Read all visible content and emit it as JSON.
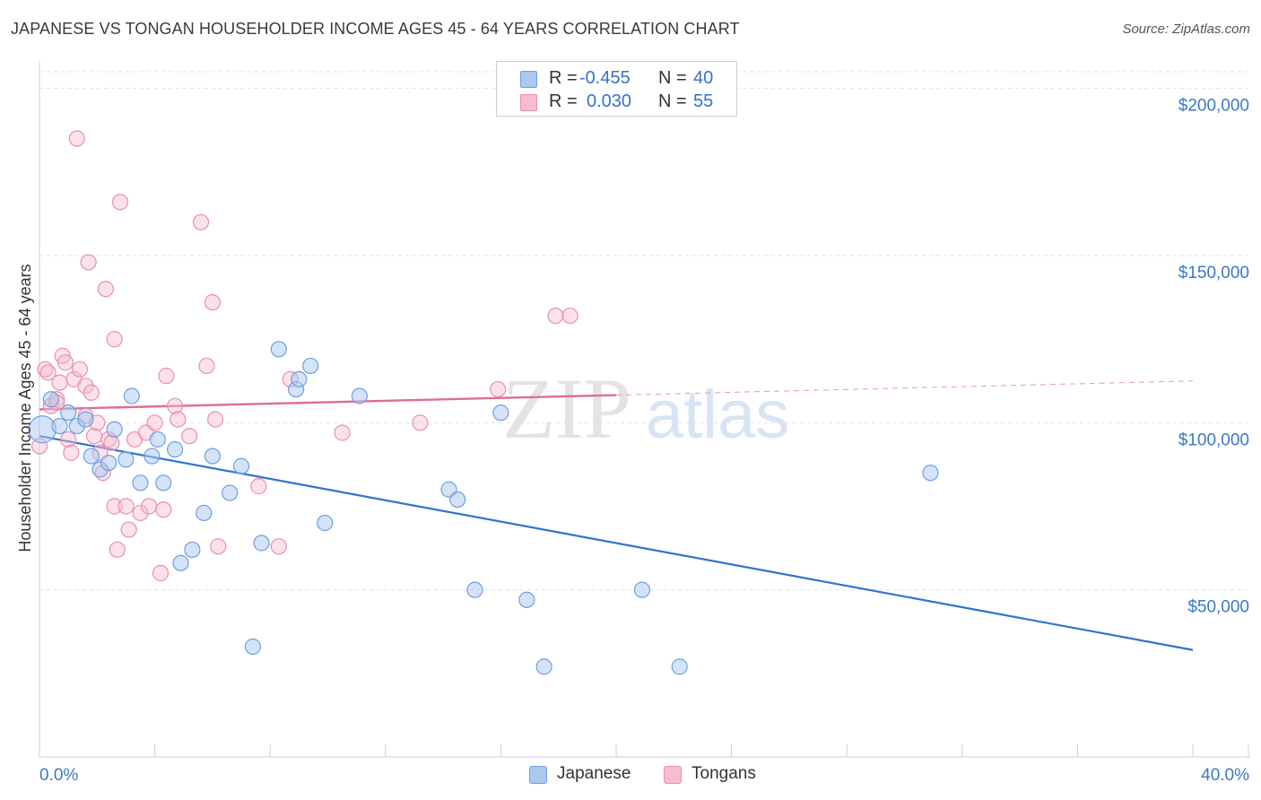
{
  "title": "JAPANESE VS TONGAN HOUSEHOLDER INCOME AGES 45 - 64 YEARS CORRELATION CHART",
  "source": "Source: ZipAtlas.com",
  "watermark": {
    "zip": "ZIP",
    "atlas": "atlas"
  },
  "legend": {
    "r_label": "R =",
    "n_label": "N =",
    "japanese": {
      "r": "-0.455",
      "n": "40"
    },
    "tongans": {
      "r": "0.030",
      "n": "55"
    }
  },
  "chart_data": {
    "type": "scatter",
    "title": "JAPANESE VS TONGAN HOUSEHOLDER INCOME AGES 45 - 64 YEARS CORRELATION CHART",
    "xlabel": "",
    "ylabel": "Householder Income Ages 45 - 64 years",
    "xlim": [
      0,
      40
    ],
    "ylim": [
      0,
      205000
    ],
    "x_tick_labels": [
      "0.0%",
      "40.0%"
    ],
    "y_ticks": [
      50000,
      100000,
      150000,
      200000
    ],
    "y_tick_labels": [
      "$50,000",
      "$100,000",
      "$150,000",
      "$200,000"
    ],
    "grid": true,
    "colors": {
      "japanese_fill": "#aac8f0",
      "japanese_stroke": "#6d9fe0",
      "japanese_line": "#2f74d0",
      "tongans_fill": "#f6bcd0",
      "tongans_stroke": "#ea8fb0",
      "tongans_line": "#e06c94",
      "tick_text": "#3a78c8"
    },
    "series": [
      {
        "name": "Japanese",
        "points": [
          [
            0.1,
            98000
          ],
          [
            0.4,
            107000
          ],
          [
            0.7,
            99000
          ],
          [
            1.0,
            103000
          ],
          [
            1.3,
            99000
          ],
          [
            1.6,
            101000
          ],
          [
            1.8,
            90000
          ],
          [
            2.1,
            86000
          ],
          [
            2.4,
            88000
          ],
          [
            2.6,
            98000
          ],
          [
            3.0,
            89000
          ],
          [
            3.2,
            108000
          ],
          [
            3.5,
            82000
          ],
          [
            3.9,
            90000
          ],
          [
            4.1,
            95000
          ],
          [
            4.3,
            82000
          ],
          [
            4.7,
            92000
          ],
          [
            4.9,
            58000
          ],
          [
            5.3,
            62000
          ],
          [
            5.7,
            73000
          ],
          [
            6.0,
            90000
          ],
          [
            6.6,
            79000
          ],
          [
            7.0,
            87000
          ],
          [
            7.4,
            33000
          ],
          [
            7.7,
            64000
          ],
          [
            8.3,
            122000
          ],
          [
            8.9,
            110000
          ],
          [
            9.0,
            113000
          ],
          [
            9.4,
            117000
          ],
          [
            9.9,
            70000
          ],
          [
            11.1,
            108000
          ],
          [
            14.2,
            80000
          ],
          [
            14.5,
            77000
          ],
          [
            15.1,
            50000
          ],
          [
            16.0,
            103000
          ],
          [
            16.9,
            47000
          ],
          [
            17.5,
            27000
          ],
          [
            20.9,
            50000
          ],
          [
            22.2,
            27000
          ],
          [
            30.9,
            85000
          ]
        ]
      },
      {
        "name": "Tongans",
        "points": [
          [
            0.0,
            93000
          ],
          [
            0.2,
            116000
          ],
          [
            0.3,
            115000
          ],
          [
            0.4,
            105000
          ],
          [
            0.6,
            107000
          ],
          [
            0.6,
            106000
          ],
          [
            0.7,
            112000
          ],
          [
            0.8,
            120000
          ],
          [
            0.9,
            118000
          ],
          [
            1.0,
            95000
          ],
          [
            1.1,
            91000
          ],
          [
            1.2,
            113000
          ],
          [
            1.3,
            185000
          ],
          [
            1.4,
            116000
          ],
          [
            1.6,
            102000
          ],
          [
            1.6,
            111000
          ],
          [
            1.7,
            148000
          ],
          [
            1.8,
            109000
          ],
          [
            1.9,
            96000
          ],
          [
            2.0,
            100000
          ],
          [
            2.1,
            91000
          ],
          [
            2.2,
            85000
          ],
          [
            2.3,
            140000
          ],
          [
            2.4,
            95000
          ],
          [
            2.5,
            94000
          ],
          [
            2.6,
            125000
          ],
          [
            2.6,
            75000
          ],
          [
            2.7,
            62000
          ],
          [
            2.8,
            166000
          ],
          [
            3.0,
            75000
          ],
          [
            3.1,
            68000
          ],
          [
            3.3,
            95000
          ],
          [
            3.5,
            73000
          ],
          [
            3.7,
            97000
          ],
          [
            3.8,
            75000
          ],
          [
            4.0,
            100000
          ],
          [
            4.2,
            55000
          ],
          [
            4.3,
            74000
          ],
          [
            4.4,
            114000
          ],
          [
            4.7,
            105000
          ],
          [
            4.8,
            101000
          ],
          [
            5.2,
            96000
          ],
          [
            5.6,
            160000
          ],
          [
            5.8,
            117000
          ],
          [
            6.0,
            136000
          ],
          [
            6.1,
            101000
          ],
          [
            6.2,
            63000
          ],
          [
            7.6,
            81000
          ],
          [
            8.3,
            63000
          ],
          [
            8.7,
            113000
          ],
          [
            10.5,
            97000
          ],
          [
            13.2,
            100000
          ],
          [
            15.9,
            110000
          ],
          [
            17.9,
            132000
          ],
          [
            18.4,
            132000
          ]
        ]
      }
    ],
    "trendlines": [
      {
        "series": "Japanese",
        "x": [
          0,
          40
        ],
        "y": [
          96000,
          32000
        ]
      },
      {
        "series": "Tongans",
        "x": [
          0,
          40
        ],
        "y": [
          104000,
          112500
        ],
        "solid_until_x": 20
      }
    ]
  },
  "bottom_legend": {
    "japanese": "Japanese",
    "tongans": "Tongans"
  }
}
